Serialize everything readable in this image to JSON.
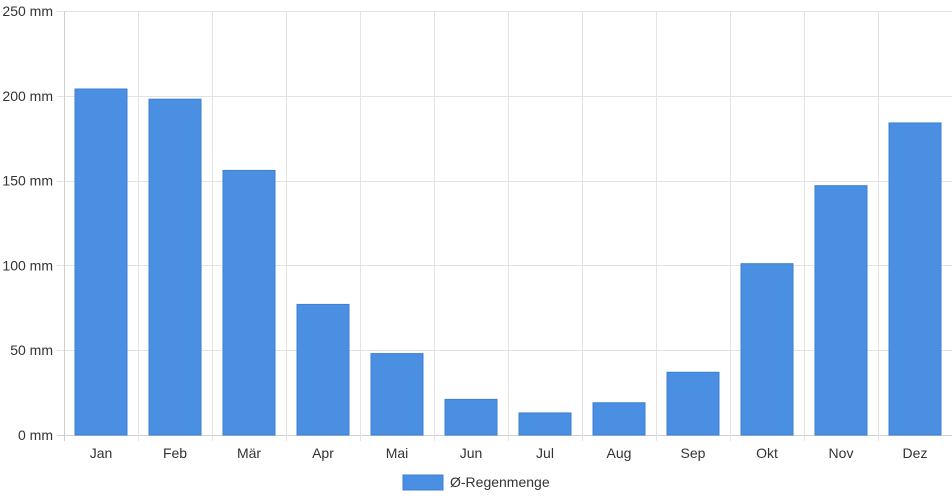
{
  "chart_data": {
    "type": "bar",
    "categories": [
      "Jan",
      "Feb",
      "Mär",
      "Apr",
      "Mai",
      "Jun",
      "Jul",
      "Aug",
      "Sep",
      "Okt",
      "Nov",
      "Dez"
    ],
    "series": [
      {
        "name": "Ø-Regenmenge",
        "values": [
          204,
          198,
          156,
          77,
          48,
          21,
          13,
          19,
          37,
          101,
          147,
          184
        ]
      }
    ],
    "yticks": [
      0,
      50,
      100,
      150,
      200,
      250
    ],
    "y_unit": "mm",
    "ylim": [
      0,
      250
    ],
    "grid": true,
    "legend_position": "bottom",
    "colors": {
      "bar": "#4a8fe2",
      "bar_edge": "#3d7fd1",
      "grid": "#e3e3e3",
      "axis": "#cfcfcf"
    }
  }
}
